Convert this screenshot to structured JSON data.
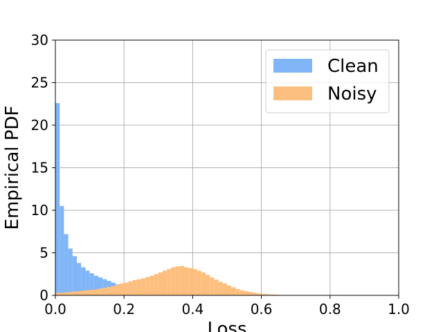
{
  "chart_data": {
    "type": "bar",
    "subtype": "overlapping-histogram",
    "xlabel": "Loss",
    "ylabel": "Empirical PDF",
    "xlim": [
      0,
      1
    ],
    "ylim": [
      0,
      30
    ],
    "xticks": [
      "0.0",
      "0.2",
      "0.4",
      "0.6",
      "0.8",
      "1.0"
    ],
    "yticks": [
      "0",
      "5",
      "10",
      "15",
      "20",
      "25",
      "30"
    ],
    "grid": true,
    "legend_position": "top-right",
    "bin_width": 0.0125,
    "series": [
      {
        "name": "Clean",
        "color": "#80b6f8",
        "bin_start": 0.0,
        "values": [
          22.6,
          10.5,
          7.2,
          5.5,
          4.6,
          3.8,
          3.3,
          2.9,
          2.6,
          2.3,
          2.1,
          1.9,
          1.7,
          1.5,
          1.3,
          1.1,
          0.9,
          0.7,
          0.55,
          0.45,
          0.35,
          0.28,
          0.22,
          0.17,
          0.13,
          0.1,
          0.08,
          0.06,
          0.05,
          0.04,
          0.03,
          0.02
        ]
      },
      {
        "name": "Noisy",
        "color": "#fdbf7f",
        "bin_start": 0.0,
        "values": [
          0.3,
          0.3,
          0.35,
          0.4,
          0.45,
          0.5,
          0.55,
          0.6,
          0.65,
          0.7,
          0.8,
          0.9,
          1.0,
          1.1,
          1.25,
          1.4,
          1.5,
          1.65,
          1.8,
          1.9,
          2.0,
          2.15,
          2.3,
          2.5,
          2.7,
          2.9,
          3.1,
          3.3,
          3.4,
          3.45,
          3.3,
          3.2,
          3.1,
          2.9,
          2.7,
          2.4,
          2.1,
          1.85,
          1.6,
          1.4,
          1.15,
          0.95,
          0.75,
          0.6,
          0.5,
          0.4,
          0.3,
          0.22,
          0.17,
          0.12,
          0.09,
          0.07,
          0.05,
          0.04,
          0.03,
          0.02,
          0.02,
          0.01,
          0.01,
          0.01
        ]
      }
    ]
  }
}
